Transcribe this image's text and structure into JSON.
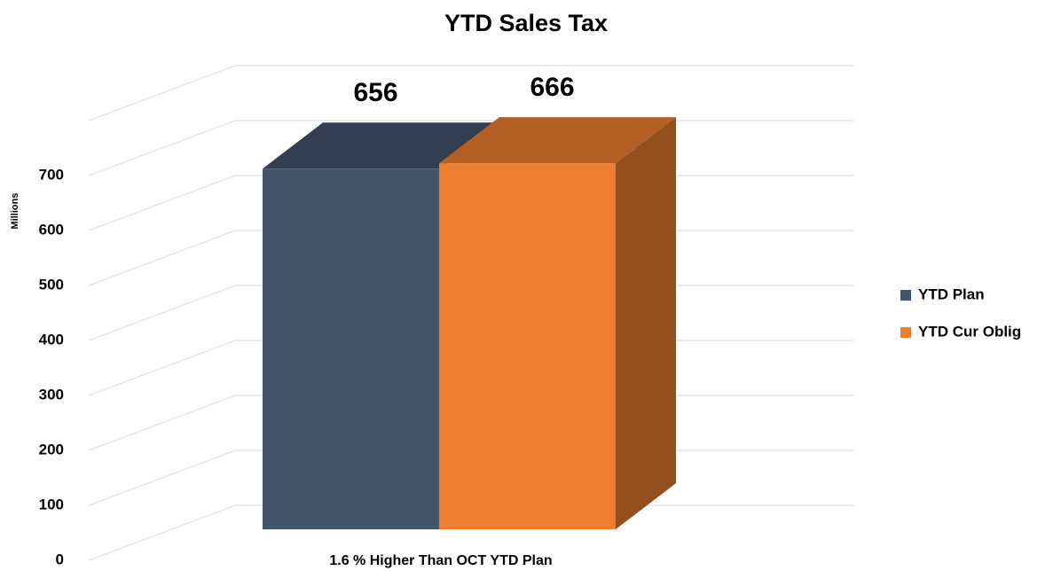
{
  "chart_data": {
    "type": "bar3d",
    "title": "YTD Sales Tax",
    "y_label": "Millions",
    "categories": [
      "1.6 % Higher Than OCT YTD Plan"
    ],
    "series": [
      {
        "name": "YTD Plan",
        "color": "#44546a",
        "values": [
          656
        ]
      },
      {
        "name": "YTD Cur Oblig",
        "color": "#ed7d31",
        "values": [
          666
        ]
      }
    ],
    "ylim": [
      0,
      800
    ],
    "yticks": [
      0,
      100,
      200,
      300,
      400,
      500,
      600,
      700
    ],
    "grid": true,
    "legend": "right"
  }
}
